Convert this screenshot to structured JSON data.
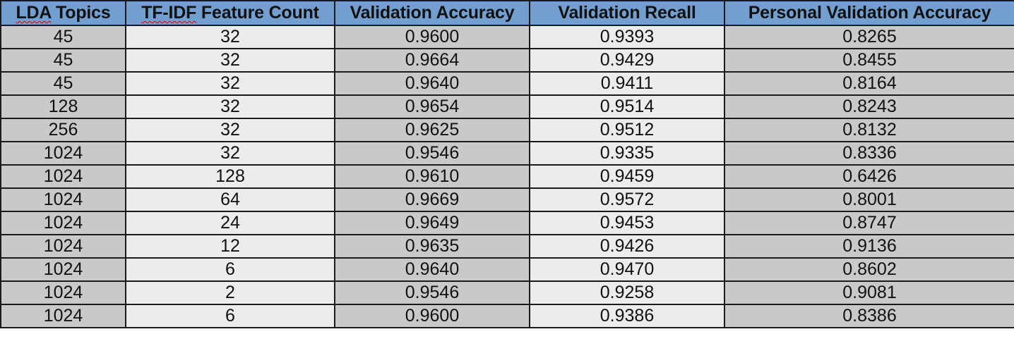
{
  "table": {
    "headers": {
      "lda_a": "LDA",
      "lda_b": " Topics",
      "tfidf_a": "TF-IDF",
      "tfidf_b": " Feature Count",
      "val_acc": "Validation Accuracy",
      "val_recall": "Validation Recall",
      "personal_acc": "Personal Validation Accuracy"
    },
    "rows": [
      [
        "45",
        "32",
        "0.9600",
        "0.9393",
        "0.8265"
      ],
      [
        "45",
        "32",
        "0.9664",
        "0.9429",
        "0.8455"
      ],
      [
        "45",
        "32",
        "0.9640",
        "0.9411",
        "0.8164"
      ],
      [
        "128",
        "32",
        "0.9654",
        "0.9514",
        "0.8243"
      ],
      [
        "256",
        "32",
        "0.9625",
        "0.9512",
        "0.8132"
      ],
      [
        "1024",
        "32",
        "0.9546",
        "0.9335",
        "0.8336"
      ],
      [
        "1024",
        "128",
        "0.9610",
        "0.9459",
        "0.6426"
      ],
      [
        "1024",
        "64",
        "0.9669",
        "0.9572",
        "0.8001"
      ],
      [
        "1024",
        "24",
        "0.9649",
        "0.9453",
        "0.8747"
      ],
      [
        "1024",
        "12",
        "0.9635",
        "0.9426",
        "0.9136"
      ],
      [
        "1024",
        "6",
        "0.9640",
        "0.9470",
        "0.8602"
      ],
      [
        "1024",
        "2",
        "0.9546",
        "0.9258",
        "0.9081"
      ],
      [
        "1024",
        "6",
        "0.9600",
        "0.9386",
        "0.8386"
      ]
    ]
  },
  "colors": {
    "header_bg": "#729fcf",
    "cell_gray": "#c9c9c9",
    "cell_light": "#ececec",
    "border": "#1a1a1a",
    "spellcheck_underline": "#d40000"
  }
}
